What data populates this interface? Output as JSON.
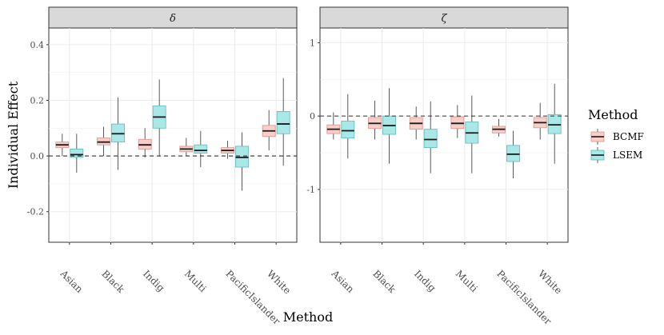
{
  "chart_data": {
    "type": "boxplot",
    "xlabel": "Method",
    "ylabel": "Individual Effect",
    "categories": [
      "Asian",
      "Black",
      "Indig",
      "Multi",
      "PacificIslander",
      "White"
    ],
    "legend": {
      "title": "Method",
      "placement": "right",
      "entries": [
        {
          "name": "BCMF",
          "fill": "#F8CFC8",
          "stroke": "#D9918A"
        },
        {
          "name": "LSEM",
          "fill": "#A9E8E6",
          "stroke": "#5DB9B9"
        }
      ]
    },
    "panels": [
      {
        "strip": "δ",
        "ylim": [
          -0.31,
          0.46
        ],
        "yticks": [
          -0.2,
          0.0,
          0.2,
          0.4
        ],
        "ytick_labels": [
          "-0.2",
          "0.0",
          "0.2",
          "0.4"
        ],
        "reference_line": 0.0,
        "series": [
          {
            "name": "BCMF",
            "boxes": [
              {
                "category": "Asian",
                "whislo": 0.0,
                "q1": 0.03,
                "med": 0.04,
                "q3": 0.05,
                "whishi": 0.08
              },
              {
                "category": "Black",
                "whislo": 0.0,
                "q1": 0.04,
                "med": 0.05,
                "q3": 0.065,
                "whishi": 0.105
              },
              {
                "category": "Indig",
                "whislo": -0.005,
                "q1": 0.025,
                "med": 0.04,
                "q3": 0.06,
                "whishi": 0.1
              },
              {
                "category": "Multi",
                "whislo": 0.0,
                "q1": 0.015,
                "med": 0.025,
                "q3": 0.035,
                "whishi": 0.065
              },
              {
                "category": "PacificIslander",
                "whislo": -0.01,
                "q1": 0.01,
                "med": 0.02,
                "q3": 0.03,
                "whishi": 0.055
              },
              {
                "category": "White",
                "whislo": 0.02,
                "q1": 0.07,
                "med": 0.09,
                "q3": 0.11,
                "whishi": 0.165
              }
            ]
          },
          {
            "name": "LSEM",
            "boxes": [
              {
                "category": "Asian",
                "whislo": -0.06,
                "q1": -0.005,
                "med": 0.005,
                "q3": 0.025,
                "whishi": 0.08
              },
              {
                "category": "Black",
                "whislo": -0.05,
                "q1": 0.05,
                "med": 0.08,
                "q3": 0.115,
                "whishi": 0.21
              },
              {
                "category": "Indig",
                "whislo": 0.0,
                "q1": 0.1,
                "med": 0.14,
                "q3": 0.18,
                "whishi": 0.275
              },
              {
                "category": "Multi",
                "whislo": -0.04,
                "q1": 0.01,
                "med": 0.02,
                "q3": 0.04,
                "whishi": 0.09
              },
              {
                "category": "PacificIslander",
                "whislo": -0.125,
                "q1": -0.04,
                "med": -0.005,
                "q3": 0.035,
                "whishi": 0.085
              },
              {
                "category": "White",
                "whislo": -0.035,
                "q1": 0.08,
                "med": 0.115,
                "q3": 0.16,
                "whishi": 0.28
              }
            ]
          }
        ]
      },
      {
        "strip": "ζ",
        "ylim": [
          -1.72,
          1.2
        ],
        "yticks": [
          -1,
          0,
          1
        ],
        "ytick_labels": [
          "-1",
          "0",
          "1"
        ],
        "reference_line": 0.0,
        "series": [
          {
            "name": "BCMF",
            "boxes": [
              {
                "category": "Asian",
                "whislo": -0.32,
                "q1": -0.24,
                "med": -0.18,
                "q3": -0.12,
                "whishi": 0.05
              },
              {
                "category": "Black",
                "whislo": -0.32,
                "q1": -0.17,
                "med": -0.1,
                "q3": -0.02,
                "whishi": 0.21
              },
              {
                "category": "Indig",
                "whislo": -0.32,
                "q1": -0.18,
                "med": -0.1,
                "q3": -0.02,
                "whishi": 0.13
              },
              {
                "category": "Multi",
                "whislo": -0.3,
                "q1": -0.17,
                "med": -0.1,
                "q3": -0.01,
                "whishi": 0.15
              },
              {
                "category": "PacificIslander",
                "whislo": -0.28,
                "q1": -0.23,
                "med": -0.18,
                "q3": -0.14,
                "whishi": -0.04
              },
              {
                "category": "White",
                "whislo": -0.32,
                "q1": -0.16,
                "med": -0.09,
                "q3": -0.02,
                "whishi": 0.18
              }
            ]
          },
          {
            "name": "LSEM",
            "boxes": [
              {
                "category": "Asian",
                "whislo": -0.58,
                "q1": -0.3,
                "med": -0.2,
                "q3": -0.07,
                "whishi": 0.3
              },
              {
                "category": "Black",
                "whislo": -0.65,
                "q1": -0.25,
                "med": -0.13,
                "q3": 0.0,
                "whishi": 0.38
              },
              {
                "category": "Indig",
                "whislo": -0.78,
                "q1": -0.43,
                "med": -0.32,
                "q3": -0.18,
                "whishi": 0.2
              },
              {
                "category": "Multi",
                "whislo": -0.78,
                "q1": -0.37,
                "med": -0.23,
                "q3": -0.08,
                "whishi": 0.28
              },
              {
                "category": "PacificIslander",
                "whislo": -0.85,
                "q1": -0.62,
                "med": -0.52,
                "q3": -0.4,
                "whishi": -0.2
              },
              {
                "category": "White",
                "whislo": -0.65,
                "q1": -0.24,
                "med": -0.12,
                "q3": 0.02,
                "whishi": 0.44
              }
            ]
          }
        ]
      }
    ]
  }
}
